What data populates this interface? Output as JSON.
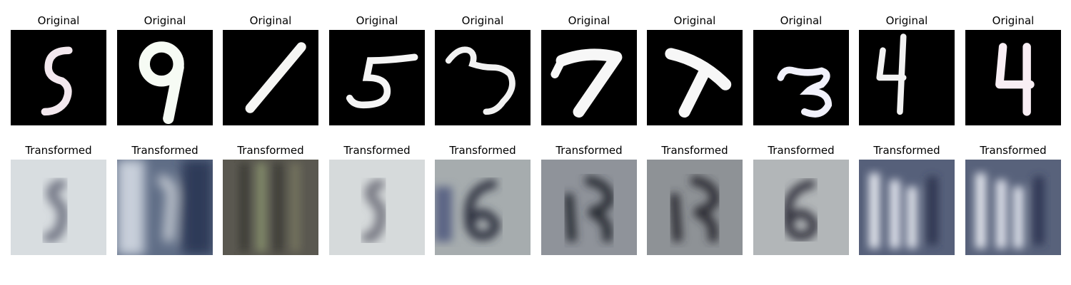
{
  "figure": {
    "row_titles": {
      "original": "Original",
      "transformed": "Transformed"
    },
    "original_digits": [
      "5",
      "9",
      "1",
      "5",
      "3",
      "7",
      "7",
      "3",
      "4",
      "4"
    ]
  },
  "colors": {
    "page_background": "#ffffff",
    "original_background": "#000000",
    "original_stroke": "#f4f4f4"
  }
}
